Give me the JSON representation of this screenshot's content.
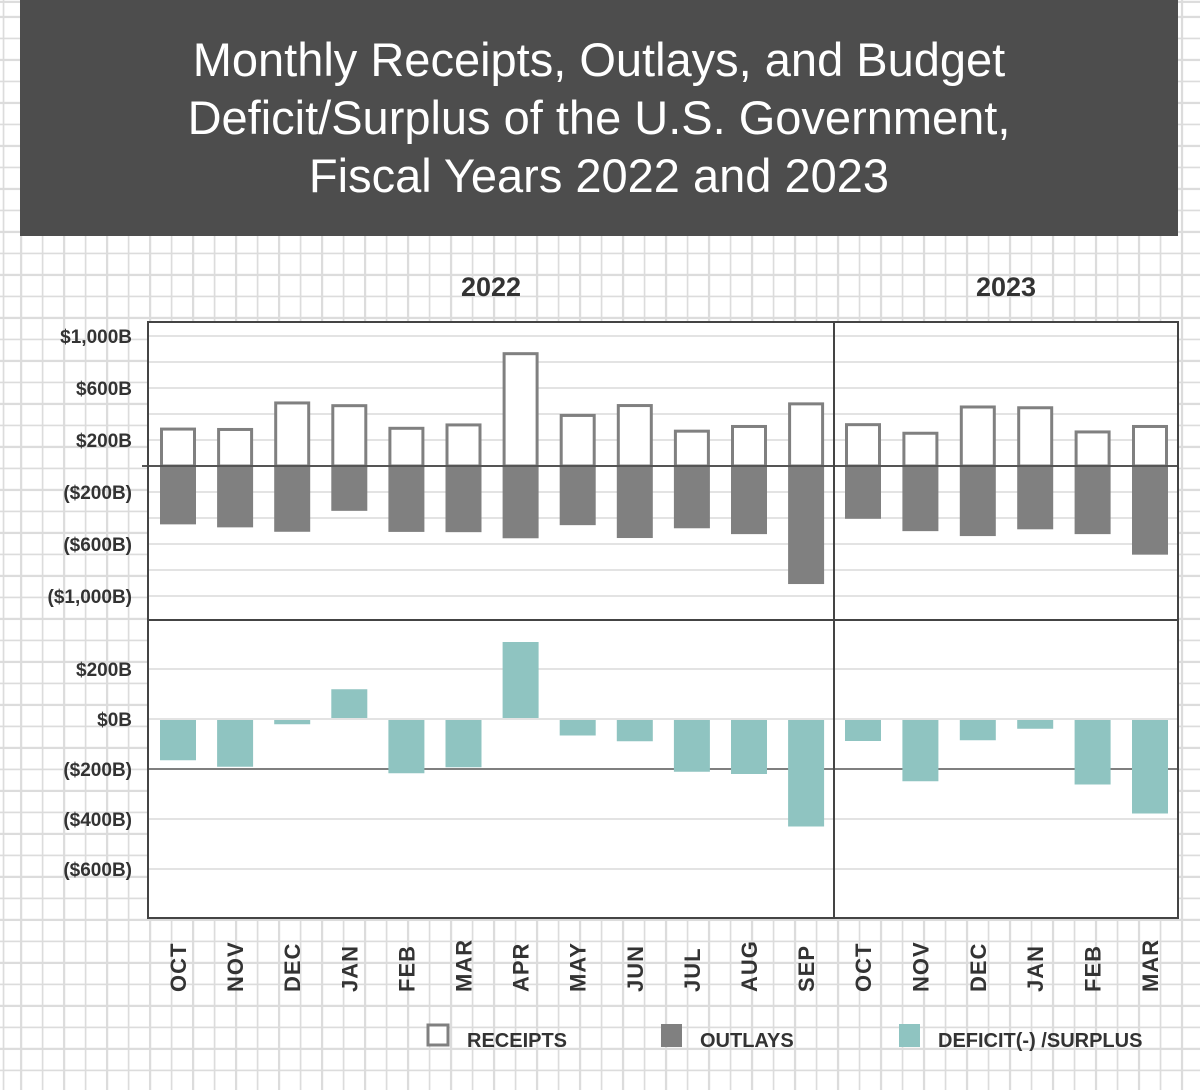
{
  "chart_data": {
    "type": "bar",
    "title": "Monthly Receipts, Outlays, and Budget\nDeficit/Surplus of the U.S. Government,\nFiscal Years 2022 and 2023",
    "groups": [
      {
        "label": "2022",
        "months": [
          "OCT",
          "NOV",
          "DEC",
          "JAN",
          "FEB",
          "MAR",
          "APR",
          "MAY",
          "JUN",
          "JUL",
          "AUG",
          "SEP"
        ]
      },
      {
        "label": "2023",
        "months": [
          "OCT",
          "NOV",
          "DEC",
          "JAN",
          "FEB",
          "MAR"
        ]
      }
    ],
    "categories": [
      "OCT",
      "NOV",
      "DEC",
      "JAN",
      "FEB",
      "MAR",
      "APR",
      "MAY",
      "JUN",
      "JUL",
      "AUG",
      "SEP",
      "OCT",
      "NOV",
      "DEC",
      "JAN",
      "FEB",
      "MAR"
    ],
    "series": [
      {
        "name": "RECEIPTS",
        "color": "#ffffff",
        "stroke": "#808080",
        "values": [
          284,
          281,
          485,
          464,
          290,
          316,
          864,
          389,
          465,
          268,
          304,
          478,
          318,
          252,
          454,
          448,
          262,
          304
        ]
      },
      {
        "name": "OUTLAYS",
        "color": "#808080",
        "values": [
          -449,
          -472,
          -506,
          -345,
          -507,
          -509,
          -556,
          -455,
          -554,
          -479,
          -524,
          -908,
          -406,
          -501,
          -539,
          -487,
          -524,
          -682
        ]
      },
      {
        "name": "DEFICIT(-) /SURPLUS",
        "color": "#8fc4c1",
        "values": [
          -165,
          -191,
          -21,
          119,
          -217,
          -193,
          308,
          -66,
          -89,
          -211,
          -220,
          -430,
          -88,
          -249,
          -85,
          -39,
          -262,
          -378
        ]
      }
    ],
    "upper_axis": {
      "ticks": [
        1000,
        600,
        200,
        -200,
        -600,
        -1000
      ],
      "tick_labels": [
        "$1,000B",
        "$600B",
        "$200B",
        "($200B)",
        "($600B)",
        "($1,000B)"
      ],
      "ylim": [
        -1200,
        1100
      ]
    },
    "lower_axis": {
      "ticks": [
        200,
        0,
        -200,
        -400,
        -600
      ],
      "tick_labels": [
        "$200B",
        "$0B",
        "($200B)",
        "($400B)",
        "($600B)"
      ],
      "ylim": [
        -800,
        400
      ]
    },
    "grid": true,
    "legend_placement": "bottom-right"
  }
}
